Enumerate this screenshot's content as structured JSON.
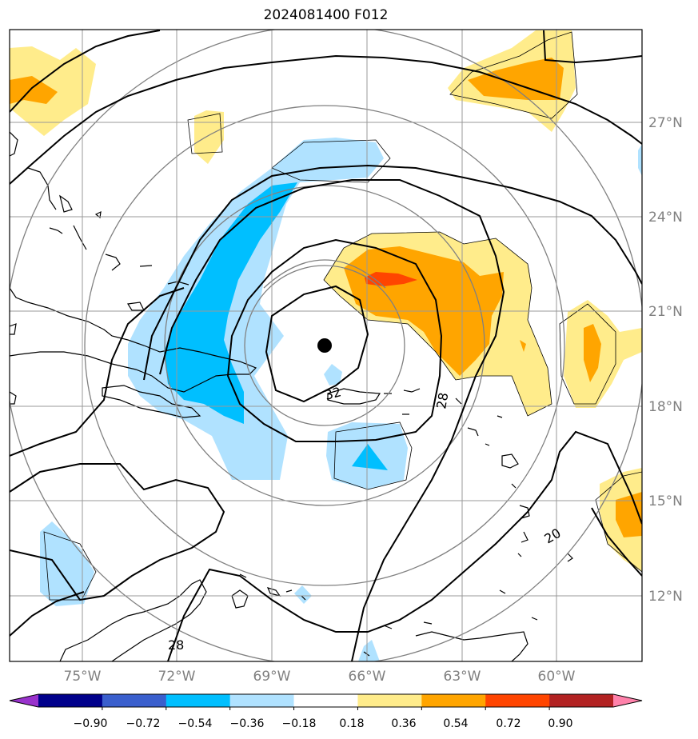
{
  "title": "2024081400 F012",
  "longitude_ticks": [
    "75°W",
    "72°W",
    "69°W",
    "66°W",
    "63°W",
    "60°W"
  ],
  "latitude_ticks": [
    "27°N",
    "24°N",
    "21°N",
    "18°N",
    "15°N",
    "12°N"
  ],
  "contour_labels": [
    "28",
    "32",
    "28",
    "20"
  ],
  "colorbar": {
    "tick_labels": [
      "−0.90",
      "−0.72",
      "−0.54",
      "−0.36",
      "−0.18",
      "0.18",
      "0.36",
      "0.54",
      "0.72",
      "0.90"
    ],
    "colors": [
      "#9932cc",
      "#00008b",
      "#3a5fcd",
      "#00bfff",
      "#b0e2ff",
      "#ffffff",
      "#ffec8b",
      "#ffa500",
      "#ff4500",
      "#b22222",
      "#ff82ab"
    ]
  },
  "colors": {
    "grid": "#999999",
    "coast": "#000000",
    "contour": "#000000",
    "range_rings": "#808080"
  }
}
